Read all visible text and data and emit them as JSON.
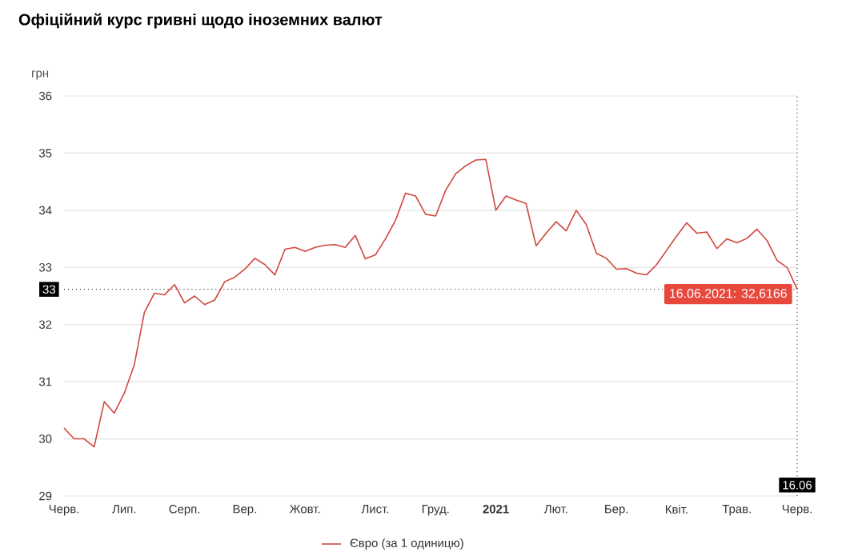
{
  "chart_data": {
    "type": "line",
    "title": "Офіційний курс гривні щодо іноземних валют",
    "ylabel": "грн",
    "categories": [
      "Черв.",
      null,
      null,
      null,
      null,
      null,
      "Лип.",
      null,
      null,
      null,
      null,
      null,
      "Серп.",
      null,
      null,
      null,
      null,
      null,
      "Вер.",
      null,
      null,
      null,
      null,
      null,
      "Жовт.",
      null,
      null,
      null,
      null,
      null,
      null,
      "Лист.",
      null,
      null,
      null,
      null,
      null,
      "Груд.",
      null,
      null,
      null,
      null,
      null,
      "**2021**",
      null,
      null,
      null,
      null,
      null,
      "Лют.",
      null,
      null,
      null,
      null,
      null,
      "Бер.",
      null,
      null,
      null,
      null,
      null,
      "Квіт.",
      null,
      null,
      null,
      null,
      null,
      "Трав.",
      null,
      null,
      null,
      null,
      null,
      "Черв."
    ],
    "ylim": [
      29,
      36
    ],
    "yticks": [
      29,
      30,
      31,
      32,
      33,
      34,
      35,
      36
    ],
    "grid": "y",
    "legend": "bottom",
    "series": [
      {
        "name": "Євро (за 1 одиницю)",
        "color": "#d0463c",
        "values": [
          30.19,
          30.0,
          30.0,
          29.86,
          30.65,
          30.45,
          30.8,
          31.3,
          32.21,
          32.55,
          32.52,
          32.7,
          32.38,
          32.5,
          32.35,
          32.43,
          32.75,
          32.83,
          32.97,
          33.16,
          33.05,
          32.87,
          33.32,
          33.35,
          33.28,
          33.35,
          33.39,
          33.4,
          33.35,
          33.56,
          33.15,
          33.22,
          33.5,
          33.82,
          34.3,
          34.25,
          33.93,
          33.9,
          34.35,
          34.64,
          34.78,
          34.88,
          34.89,
          34.0,
          34.25,
          34.18,
          34.12,
          33.38,
          33.6,
          33.8,
          33.64,
          34.0,
          33.75,
          33.25,
          33.16,
          32.97,
          32.98,
          32.9,
          32.87,
          33.05,
          33.3,
          33.55,
          33.78,
          33.6,
          33.62,
          33.33,
          33.5,
          33.43,
          33.51,
          33.67,
          33.47,
          33.12,
          33.0,
          32.6166
        ]
      }
    ],
    "ref_lines": [
      {
        "axis": "y",
        "value": 32.6166,
        "label": "33",
        "color": "#000000",
        "line_style": "dotted"
      }
    ],
    "annotations": [
      {
        "text": "16.06.2021: 32,6166",
        "y": 32.6166
      },
      "16.06"
    ]
  }
}
